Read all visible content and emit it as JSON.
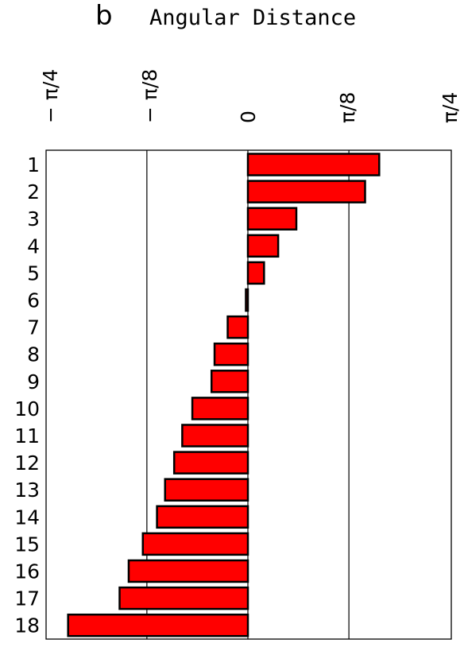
{
  "chart_data": {
    "type": "bar",
    "orientation": "horizontal",
    "panel_label": "b",
    "title": "Angular Distance",
    "xlabel": "",
    "ylabel": "",
    "categories": [
      "1",
      "2",
      "3",
      "4",
      "5",
      "6",
      "7",
      "8",
      "9",
      "10",
      "11",
      "12",
      "13",
      "14",
      "15",
      "16",
      "17",
      "18"
    ],
    "values": [
      0.2553,
      0.2278,
      0.0942,
      0.0589,
      0.0314,
      -0.0039,
      -0.0393,
      -0.0648,
      -0.0707,
      -0.108,
      -0.1276,
      -0.1433,
      -0.161,
      -0.1767,
      -0.2042,
      -0.2317,
      -0.2494,
      -0.3495
    ],
    "xlim": [
      -0.3927,
      0.3927
    ],
    "xticks": [
      -0.7854,
      -0.3927,
      0,
      0.3927,
      0.7854
    ],
    "xtick_labels": [
      "− π/4",
      "− π/8",
      "0",
      "π/8",
      "π/4"
    ],
    "gridlines_x": [
      -0.19635,
      0.19635
    ],
    "bar_color": "#ff0000",
    "grid": true
  }
}
